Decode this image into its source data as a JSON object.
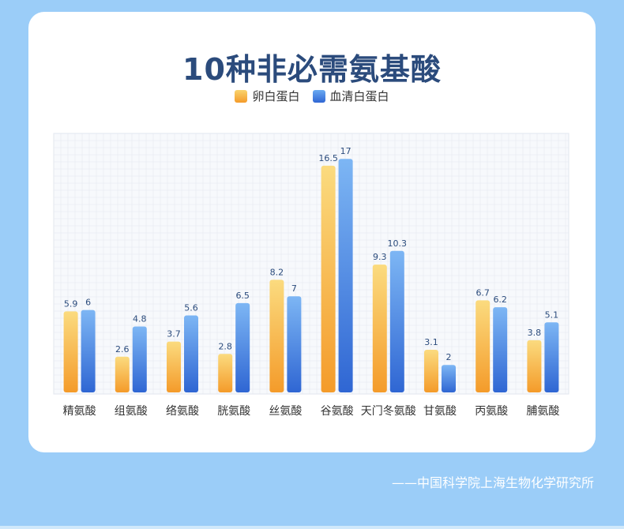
{
  "title": "10种非必需氨基酸",
  "source": "——中国科学院上海生物化学研究所",
  "chart_data": {
    "type": "bar",
    "categories": [
      "精氨酸",
      "组氨酸",
      "络氨酸",
      "胱氨酸",
      "丝氨酸",
      "谷氨酸",
      "天门冬氨酸",
      "甘氨酸",
      "丙氨酸",
      "脯氨酸"
    ],
    "series": [
      {
        "name": "卵白蛋白",
        "color": "#f49b2a",
        "values": [
          5.9,
          2.6,
          3.7,
          2.8,
          8.2,
          16.5,
          9.3,
          3.1,
          6.7,
          3.8
        ]
      },
      {
        "name": "血清白蛋白",
        "color": "#2f66d3",
        "values": [
          6,
          4.8,
          5.6,
          6.5,
          7,
          17,
          10.3,
          2,
          6.2,
          5.1
        ]
      }
    ],
    "grid": true,
    "legend_position": "top-center"
  }
}
